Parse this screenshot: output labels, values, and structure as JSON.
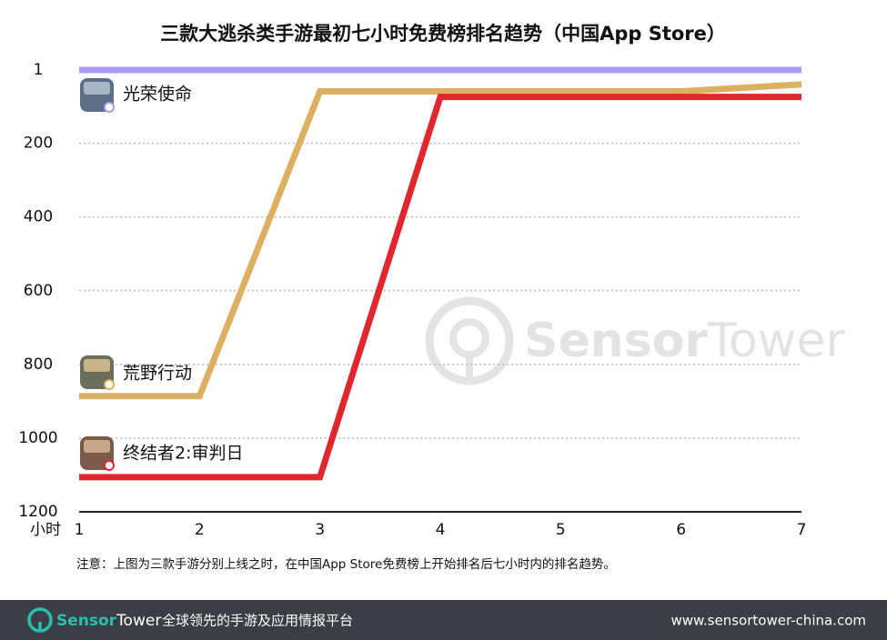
{
  "chart_data": {
    "type": "line",
    "title": "三款大逃杀类手游最初七小时免费榜排名趋势（中国App Store）",
    "x_label": "小时",
    "x": [
      1,
      2,
      3,
      4,
      5,
      6,
      7
    ],
    "xlim": [
      1,
      7
    ],
    "xticks": [
      1,
      2,
      3,
      4,
      5,
      6,
      7
    ],
    "ylim": [
      1200,
      1
    ],
    "yticks": [
      1,
      200,
      400,
      600,
      800,
      1000,
      1200
    ],
    "grid": true,
    "series": [
      {
        "name": "光荣使命",
        "color": "#a99cf3",
        "values": [
          1,
          1,
          1,
          1,
          1,
          1,
          1
        ]
      },
      {
        "name": "荒野行动",
        "color": "#dcb060",
        "values": [
          886,
          886,
          59,
          59,
          59,
          59,
          40
        ]
      },
      {
        "name": "终结者2:审判日",
        "color": "#e0272d",
        "values": [
          1106,
          1106,
          1106,
          74,
          74,
          74,
          74
        ]
      }
    ]
  },
  "note": "注意：上图为三款手游分别上线之时，在中国App Store免费榜上开始排名后七小时内的排名趋势。",
  "watermark": [
    "Sensor",
    "Tower"
  ],
  "footer": {
    "brand": [
      "Sensor",
      "Tower"
    ],
    "tagline": "全球领先的手游及应用情报平台",
    "url": "www.sensortower-china.com"
  }
}
